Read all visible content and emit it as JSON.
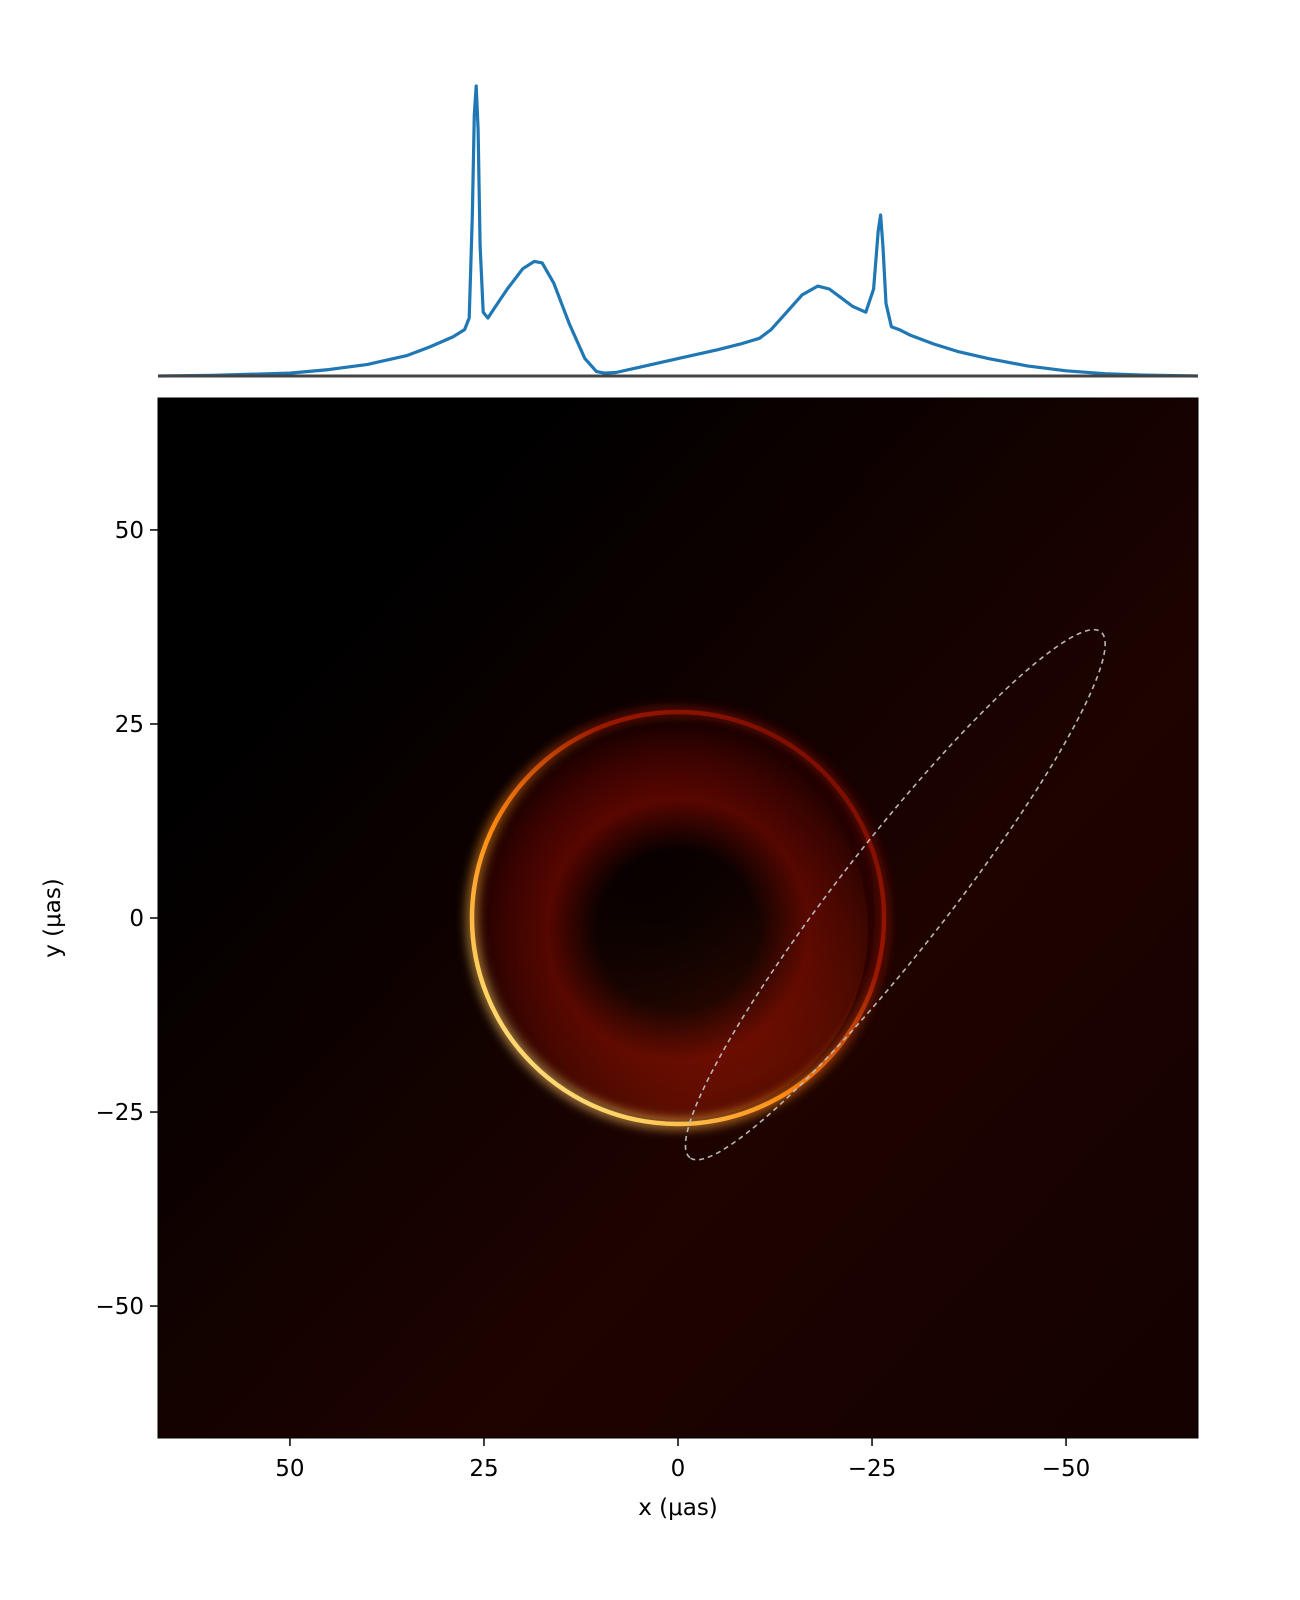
{
  "chart_data": [
    {
      "type": "line",
      "panel": "intensity profile along x",
      "series": [
        {
          "color": "#1f77b4",
          "x": [
            67,
            60,
            50,
            45,
            40,
            35,
            32,
            29,
            27.5,
            26.9,
            26.5,
            26.25,
            26.0,
            25.75,
            25.5,
            25.1,
            24.5,
            23.5,
            22,
            20,
            18.5,
            17.5,
            16,
            14,
            12,
            10.5,
            9.5,
            8,
            5,
            0,
            -5,
            -8,
            -10.5,
            -12,
            -14,
            -16,
            -18,
            -19.5,
            -21,
            -22.5,
            -24.2,
            -25.2,
            -25.8,
            -26.1,
            -26.4,
            -26.8,
            -27.5,
            -28.5,
            -30,
            -33,
            -36,
            -40,
            -45,
            -50,
            -55,
            -60,
            -67
          ],
          "y": [
            0,
            0.002,
            0.01,
            0.022,
            0.04,
            0.07,
            0.1,
            0.135,
            0.16,
            0.2,
            0.55,
            0.9,
            1.0,
            0.85,
            0.45,
            0.22,
            0.2,
            0.24,
            0.3,
            0.37,
            0.395,
            0.39,
            0.32,
            0.18,
            0.06,
            0.015,
            0.01,
            0.012,
            0.03,
            0.06,
            0.09,
            0.11,
            0.13,
            0.16,
            0.22,
            0.28,
            0.31,
            0.3,
            0.27,
            0.24,
            0.22,
            0.3,
            0.5,
            0.555,
            0.45,
            0.25,
            0.17,
            0.16,
            0.14,
            0.11,
            0.085,
            0.06,
            0.035,
            0.018,
            0.008,
            0.003,
            0
          ]
        }
      ]
    },
    {
      "type": "heatmap",
      "panel": "image",
      "xlabel": "x (μas)",
      "ylabel": "y (μas)",
      "xlim": [
        67,
        -67
      ],
      "ylim": [
        -67,
        67
      ],
      "xticks": [
        50,
        25,
        0,
        -25,
        -50
      ],
      "yticks": [
        50,
        25,
        0,
        -25,
        -50
      ],
      "xtick_labels": [
        "50",
        "25",
        "0",
        "−25",
        "−50"
      ],
      "ytick_labels": [
        "50",
        "25",
        "0",
        "−25",
        "−50"
      ],
      "colormap": "afmhot",
      "ring": {
        "center": [
          0,
          0
        ],
        "radius": 26.5
      },
      "shadow": {
        "center": [
          0,
          0
        ],
        "radius": 16
      },
      "ellipse": {
        "style": "dashed",
        "color": "#b8b8b8",
        "center": [
          -28,
          3
        ],
        "semi_major": 43,
        "semi_minor": 7,
        "angle_deg": 128
      }
    }
  ]
}
